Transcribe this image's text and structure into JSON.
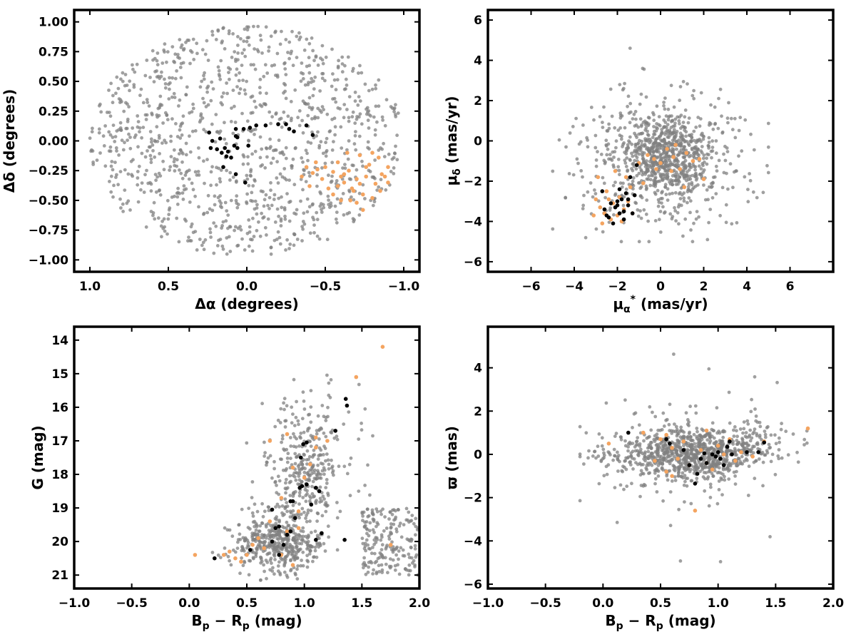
{
  "colors": {
    "background": "#808080",
    "members": "#f4a460",
    "highlighted": "#000000"
  },
  "chart_data": [
    {
      "type": "scatter",
      "xlabel": "Δα (degrees)",
      "ylabel": "Δδ (degrees)",
      "xlim": [
        1.1,
        -1.1
      ],
      "ylim": [
        -1.1,
        1.1
      ],
      "xticks": [
        1.0,
        0.5,
        0.0,
        -0.5,
        -1.0
      ],
      "xtick_labels": [
        "1.0",
        "0.5",
        "0.0",
        "−0.5",
        "−1.0"
      ],
      "yticks": [
        1.0,
        0.75,
        0.5,
        0.25,
        0.0,
        -0.25,
        -0.5,
        -0.75,
        -1.0
      ],
      "ytick_labels": [
        "1.00",
        "0.75",
        "0.50",
        "0.25",
        "0.00",
        "−0.25",
        "−0.50",
        "−0.75",
        "−1.00"
      ],
      "grid": false,
      "series": [
        {
          "color": "#f4a460",
          "points": [
            [
              -0.38,
              -0.22
            ],
            [
              -0.42,
              -0.27
            ],
            [
              -0.45,
              -0.24
            ],
            [
              -0.5,
              -0.22
            ],
            [
              -0.55,
              -0.26
            ],
            [
              -0.58,
              -0.18
            ],
            [
              -0.6,
              -0.3
            ],
            [
              -0.62,
              -0.35
            ],
            [
              -0.65,
              -0.25
            ],
            [
              -0.67,
              -0.4
            ],
            [
              -0.7,
              -0.32
            ],
            [
              -0.72,
              -0.12
            ],
            [
              -0.74,
              -0.45
            ],
            [
              -0.76,
              -0.3
            ],
            [
              -0.78,
              -0.2
            ],
            [
              -0.8,
              -0.48
            ],
            [
              -0.82,
              -0.36
            ],
            [
              -0.84,
              -0.14
            ],
            [
              -0.86,
              -0.28
            ],
            [
              -0.88,
              -0.3
            ],
            [
              -0.9,
              -0.22
            ],
            [
              -0.55,
              -0.45
            ],
            [
              -0.6,
              -0.5
            ],
            [
              -0.52,
              -0.4
            ],
            [
              -0.48,
              -0.32
            ],
            [
              -0.66,
              -0.5
            ],
            [
              -0.7,
              -0.52
            ],
            [
              -0.74,
              -0.58
            ],
            [
              -0.35,
              -0.3
            ],
            [
              -0.4,
              -0.38
            ],
            [
              -0.64,
              -0.1
            ],
            [
              -0.76,
              -0.22
            ],
            [
              -0.68,
              -0.42
            ],
            [
              -0.58,
              -0.38
            ],
            [
              -0.8,
              -0.1
            ],
            [
              -0.85,
              -0.42
            ],
            [
              -0.72,
              -0.36
            ],
            [
              -0.62,
              -0.28
            ],
            [
              -0.44,
              -0.18
            ],
            [
              -0.9,
              -0.35
            ]
          ]
        },
        {
          "color": "#000000",
          "points": [
            [
              0.24,
              0.07
            ],
            [
              0.22,
              0.0
            ],
            [
              0.23,
              -0.06
            ],
            [
              0.19,
              -0.07
            ],
            [
              0.17,
              0.02
            ],
            [
              0.16,
              -0.1
            ],
            [
              0.14,
              -0.06
            ],
            [
              0.13,
              -0.13
            ],
            [
              0.12,
              -0.09
            ],
            [
              0.1,
              -0.14
            ],
            [
              0.08,
              -0.04
            ],
            [
              0.07,
              0.04
            ],
            [
              0.07,
              0.1
            ],
            [
              0.06,
              -0.06
            ],
            [
              0.02,
              0.1
            ],
            [
              -0.01,
              -0.04
            ],
            [
              -0.06,
              0.13
            ],
            [
              -0.12,
              0.13
            ],
            [
              -0.2,
              0.14
            ],
            [
              -0.25,
              0.14
            ],
            [
              -0.27,
              0.1
            ],
            [
              -0.3,
              0.08
            ],
            [
              -0.38,
              0.13
            ],
            [
              -0.42,
              0.05
            ],
            [
              0.15,
              -0.22
            ],
            [
              0.07,
              -0.28
            ],
            [
              0.01,
              -0.35
            ],
            [
              -0.02,
              0.11
            ],
            [
              0.06,
              0.03
            ]
          ]
        }
      ]
    },
    {
      "type": "scatter",
      "xlabel": "μα* (mas/yr)",
      "ylabel": "μδ (mas/yr)",
      "xlim": [
        -8,
        8
      ],
      "ylim": [
        -6.5,
        6.5
      ],
      "xticks": [
        -6,
        -4,
        -2,
        0,
        2,
        4,
        6
      ],
      "xtick_labels": [
        "−6",
        "−4",
        "−2",
        "0",
        "2",
        "4",
        "6"
      ],
      "yticks": [
        6,
        4,
        2,
        0,
        -2,
        -4,
        -6
      ],
      "ytick_labels": [
        "6",
        "4",
        "2",
        "0",
        "−2",
        "−4",
        "−6"
      ],
      "grid": false,
      "series": [
        {
          "color": "#f4a460",
          "points": [
            [
              -3.0,
              -2.9
            ],
            [
              -2.8,
              -3.3
            ],
            [
              -2.6,
              -3.6
            ],
            [
              -2.5,
              -2.5
            ],
            [
              -2.3,
              -3.9
            ],
            [
              -2.2,
              -3.1
            ],
            [
              -2.0,
              -3.7
            ],
            [
              -1.9,
              -2.8
            ],
            [
              -1.8,
              -4.0
            ],
            [
              -1.7,
              -3.4
            ],
            [
              -1.5,
              -3.0
            ],
            [
              -1.4,
              -2.3
            ],
            [
              -1.3,
              -3.6
            ],
            [
              -2.7,
              -4.1
            ],
            [
              -3.1,
              -3.7
            ],
            [
              -2.4,
              -2.9
            ],
            [
              -0.6,
              -0.7
            ],
            [
              -0.3,
              -0.9
            ],
            [
              0.0,
              -1.1
            ],
            [
              0.3,
              -0.4
            ],
            [
              0.6,
              -0.8
            ],
            [
              0.9,
              -1.4
            ],
            [
              1.2,
              -0.6
            ],
            [
              1.5,
              -1.0
            ],
            [
              1.8,
              -0.9
            ],
            [
              2.0,
              -1.9
            ],
            [
              -0.2,
              -1.4
            ],
            [
              0.5,
              -1.5
            ],
            [
              -1.6,
              -1.8
            ],
            [
              -2.1,
              -1.5
            ],
            [
              -2.9,
              -1.8
            ],
            [
              0.7,
              -0.2
            ],
            [
              1.1,
              -2.3
            ],
            [
              -1.0,
              -1.1
            ],
            [
              -0.8,
              -2.1
            ]
          ]
        },
        {
          "color": "#000000",
          "points": [
            [
              -2.7,
              -2.5
            ],
            [
              -2.6,
              -3.4
            ],
            [
              -2.5,
              -3.7
            ],
            [
              -2.3,
              -3.1
            ],
            [
              -2.2,
              -4.1
            ],
            [
              -2.1,
              -3.3
            ],
            [
              -2.0,
              -3.0
            ],
            [
              -1.9,
              -3.6
            ],
            [
              -1.8,
              -2.9
            ],
            [
              -1.7,
              -3.5
            ],
            [
              -1.6,
              -2.6
            ],
            [
              -1.5,
              -3.2
            ],
            [
              -1.4,
              -1.8
            ],
            [
              -1.3,
              -3.6
            ],
            [
              -1.2,
              -2.7
            ],
            [
              -1.1,
              -1.2
            ],
            [
              -1.9,
              -2.4
            ],
            [
              -2.4,
              -3.8
            ],
            [
              -1.7,
              -3.9
            ],
            [
              -2.0,
              -3.2
            ],
            [
              -1.5,
              -2.9
            ]
          ]
        }
      ]
    },
    {
      "type": "scatter",
      "xlabel": "Bp − Rp (mag)",
      "ylabel": "G (mag)",
      "xlim": [
        -1.0,
        2.0
      ],
      "ylim": [
        21.4,
        13.6
      ],
      "xticks": [
        -1.0,
        -0.5,
        0.0,
        0.5,
        1.0,
        1.5,
        2.0
      ],
      "xtick_labels": [
        "−1.0",
        "−0.5",
        "0.0",
        "0.5",
        "1.0",
        "1.5",
        "2.0"
      ],
      "yticks": [
        21,
        20,
        19,
        18,
        17,
        16,
        15,
        14
      ],
      "ytick_labels": [
        "21",
        "20",
        "19",
        "18",
        "17",
        "16",
        "15",
        "14"
      ],
      "grid": false,
      "series": [
        {
          "color": "#f4a460",
          "points": [
            [
              0.05,
              20.4
            ],
            [
              0.35,
              20.3
            ],
            [
              0.4,
              20.5
            ],
            [
              0.45,
              20.6
            ],
            [
              0.5,
              20.4
            ],
            [
              0.55,
              20.1
            ],
            [
              0.6,
              19.9
            ],
            [
              0.65,
              20.2
            ],
            [
              0.7,
              19.4
            ],
            [
              0.8,
              18.7
            ],
            [
              0.85,
              19.7
            ],
            [
              0.9,
              20.7
            ],
            [
              0.95,
              19.1
            ],
            [
              1.0,
              18.1
            ],
            [
              1.05,
              17.7
            ],
            [
              1.1,
              17.2
            ],
            [
              1.2,
              17.0
            ],
            [
              1.1,
              16.9
            ],
            [
              0.85,
              16.8
            ],
            [
              0.9,
              17.8
            ],
            [
              0.7,
              17.0
            ],
            [
              1.45,
              15.1
            ],
            [
              1.68,
              14.2
            ],
            [
              1.75,
              20.1
            ],
            [
              0.3,
              20.4
            ],
            [
              0.8,
              20.4
            ],
            [
              0.95,
              19.6
            ]
          ]
        },
        {
          "color": "#000000",
          "points": [
            [
              0.22,
              20.5
            ],
            [
              0.53,
              20.25
            ],
            [
              0.72,
              20.0
            ],
            [
              0.75,
              19.6
            ],
            [
              0.78,
              20.4
            ],
            [
              0.82,
              20.1
            ],
            [
              0.85,
              19.8
            ],
            [
              0.88,
              19.7
            ],
            [
              0.92,
              19.3
            ],
            [
              0.9,
              18.8
            ],
            [
              0.88,
              18.8
            ],
            [
              0.96,
              18.4
            ],
            [
              0.98,
              18.35
            ],
            [
              1.02,
              18.3
            ],
            [
              1.06,
              18.9
            ],
            [
              1.1,
              18.4
            ],
            [
              1.13,
              18.5
            ],
            [
              1.1,
              19.95
            ],
            [
              1.15,
              19.75
            ],
            [
              1.35,
              19.95
            ],
            [
              0.97,
              17.5
            ],
            [
              0.99,
              17.1
            ],
            [
              1.02,
              17.05
            ],
            [
              1.27,
              16.7
            ],
            [
              1.37,
              15.95
            ],
            [
              1.36,
              15.75
            ],
            [
              0.72,
              19.05
            ],
            [
              0.78,
              19.55
            ]
          ]
        }
      ]
    },
    {
      "type": "scatter",
      "xlabel": "Bp − Rp (mag)",
      "ylabel": "ϖ (mas)",
      "xlim": [
        -1.0,
        2.0
      ],
      "ylim": [
        -6.2,
        5.9
      ],
      "xticks": [
        -1.0,
        -0.5,
        0.0,
        0.5,
        1.0,
        1.5,
        2.0
      ],
      "xtick_labels": [
        "−1.0",
        "−0.5",
        "0.0",
        "0.5",
        "1.0",
        "1.5",
        "2.0"
      ],
      "yticks": [
        4,
        2,
        0,
        -2,
        -4,
        -6
      ],
      "ytick_labels": [
        "4",
        "2",
        "0",
        "−2",
        "−4",
        "−6"
      ],
      "grid": false,
      "series": [
        {
          "color": "#f4a460",
          "points": [
            [
              0.05,
              0.5
            ],
            [
              0.35,
              1.0
            ],
            [
              0.45,
              -0.3
            ],
            [
              0.5,
              0.7
            ],
            [
              0.55,
              -0.8
            ],
            [
              0.6,
              0.3
            ],
            [
              0.65,
              -0.2
            ],
            [
              0.7,
              0.6
            ],
            [
              0.75,
              -0.5
            ],
            [
              0.8,
              -2.6
            ],
            [
              0.85,
              0.2
            ],
            [
              0.9,
              1.1
            ],
            [
              0.95,
              -0.7
            ],
            [
              1.0,
              0.4
            ],
            [
              1.05,
              0.0
            ],
            [
              1.1,
              0.7
            ],
            [
              1.15,
              -0.3
            ],
            [
              1.2,
              0.1
            ],
            [
              1.4,
              0.6
            ],
            [
              1.78,
              1.2
            ],
            [
              0.55,
              0.9
            ],
            [
              0.6,
              -1.0
            ],
            [
              0.9,
              -0.4
            ],
            [
              1.3,
              -0.1
            ]
          ]
        },
        {
          "color": "#000000",
          "points": [
            [
              0.22,
              1.0
            ],
            [
              0.55,
              0.7
            ],
            [
              0.58,
              0.5
            ],
            [
              0.7,
              0.2
            ],
            [
              0.75,
              -0.5
            ],
            [
              0.8,
              -1.35
            ],
            [
              0.82,
              -0.9
            ],
            [
              0.85,
              -0.2
            ],
            [
              0.9,
              -0.4
            ],
            [
              0.95,
              0.0
            ],
            [
              0.98,
              -0.1
            ],
            [
              1.0,
              0.1
            ],
            [
              1.02,
              -0.2
            ],
            [
              1.05,
              -0.5
            ],
            [
              1.08,
              0.35
            ],
            [
              1.1,
              0.6
            ],
            [
              1.12,
              0.0
            ],
            [
              1.25,
              0.1
            ],
            [
              1.35,
              0.1
            ],
            [
              1.4,
              0.55
            ],
            [
              0.88,
              0.05
            ]
          ]
        }
      ]
    }
  ]
}
